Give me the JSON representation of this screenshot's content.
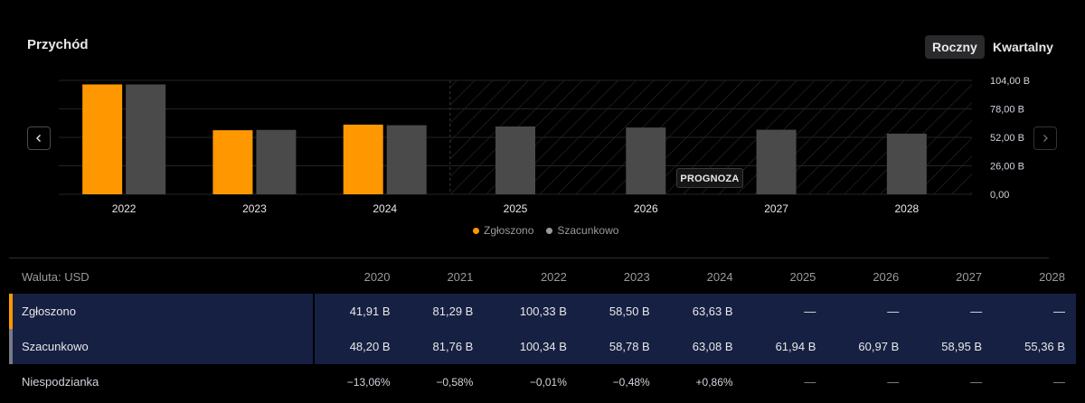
{
  "header": {
    "title": "Przychód"
  },
  "period_toggle": {
    "annual": "Roczny",
    "quarterly": "Kwartalny"
  },
  "forecast_label": "PROGNOZA",
  "colors": {
    "reported": "#ff9800",
    "estimated": "#4a4a4a",
    "reported_marker": "#ff9800",
    "estimated_marker": "#787b86"
  },
  "chart_data": {
    "type": "bar",
    "title": "Przychód",
    "categories": [
      "2022",
      "2023",
      "2024",
      "2025",
      "2026",
      "2027",
      "2028"
    ],
    "series": [
      {
        "name": "Zgłoszono",
        "values": [
          100.33,
          58.5,
          63.63,
          null,
          null,
          null,
          null
        ]
      },
      {
        "name": "Szacunkowo",
        "values": [
          100.34,
          58.78,
          63.08,
          61.94,
          60.97,
          58.95,
          55.36
        ]
      }
    ],
    "ylim": [
      0,
      104
    ],
    "yticks": [
      0,
      26,
      52,
      78,
      104
    ],
    "ytick_labels": [
      "0,00",
      "26,00 B",
      "52,00 B",
      "78,00 B",
      "104,00 B"
    ],
    "forecast_start": "2025",
    "legend": [
      "Zgłoszono",
      "Szacunkowo"
    ],
    "legend_position": "bottom-center"
  },
  "table": {
    "currency_label": "Waluta: USD",
    "years": [
      "2020",
      "2021",
      "2022",
      "2023",
      "2024",
      "2025",
      "2026",
      "2027",
      "2028"
    ],
    "rows": [
      {
        "label": "Zgłoszono",
        "values": [
          "41,91 B",
          "81,29 B",
          "100,33 B",
          "58,50 B",
          "63,63 B",
          "—",
          "—",
          "—",
          "—"
        ]
      },
      {
        "label": "Szacunkowo",
        "values": [
          "48,20 B",
          "81,76 B",
          "100,34 B",
          "58,78 B",
          "63,08 B",
          "61,94 B",
          "60,97 B",
          "58,95 B",
          "55,36 B"
        ]
      },
      {
        "label": "Niespodzianka",
        "values": [
          "−13,06%",
          "−0,58%",
          "−0,01%",
          "−0,48%",
          "+0,86%",
          "—",
          "—",
          "—",
          "—"
        ]
      }
    ]
  }
}
